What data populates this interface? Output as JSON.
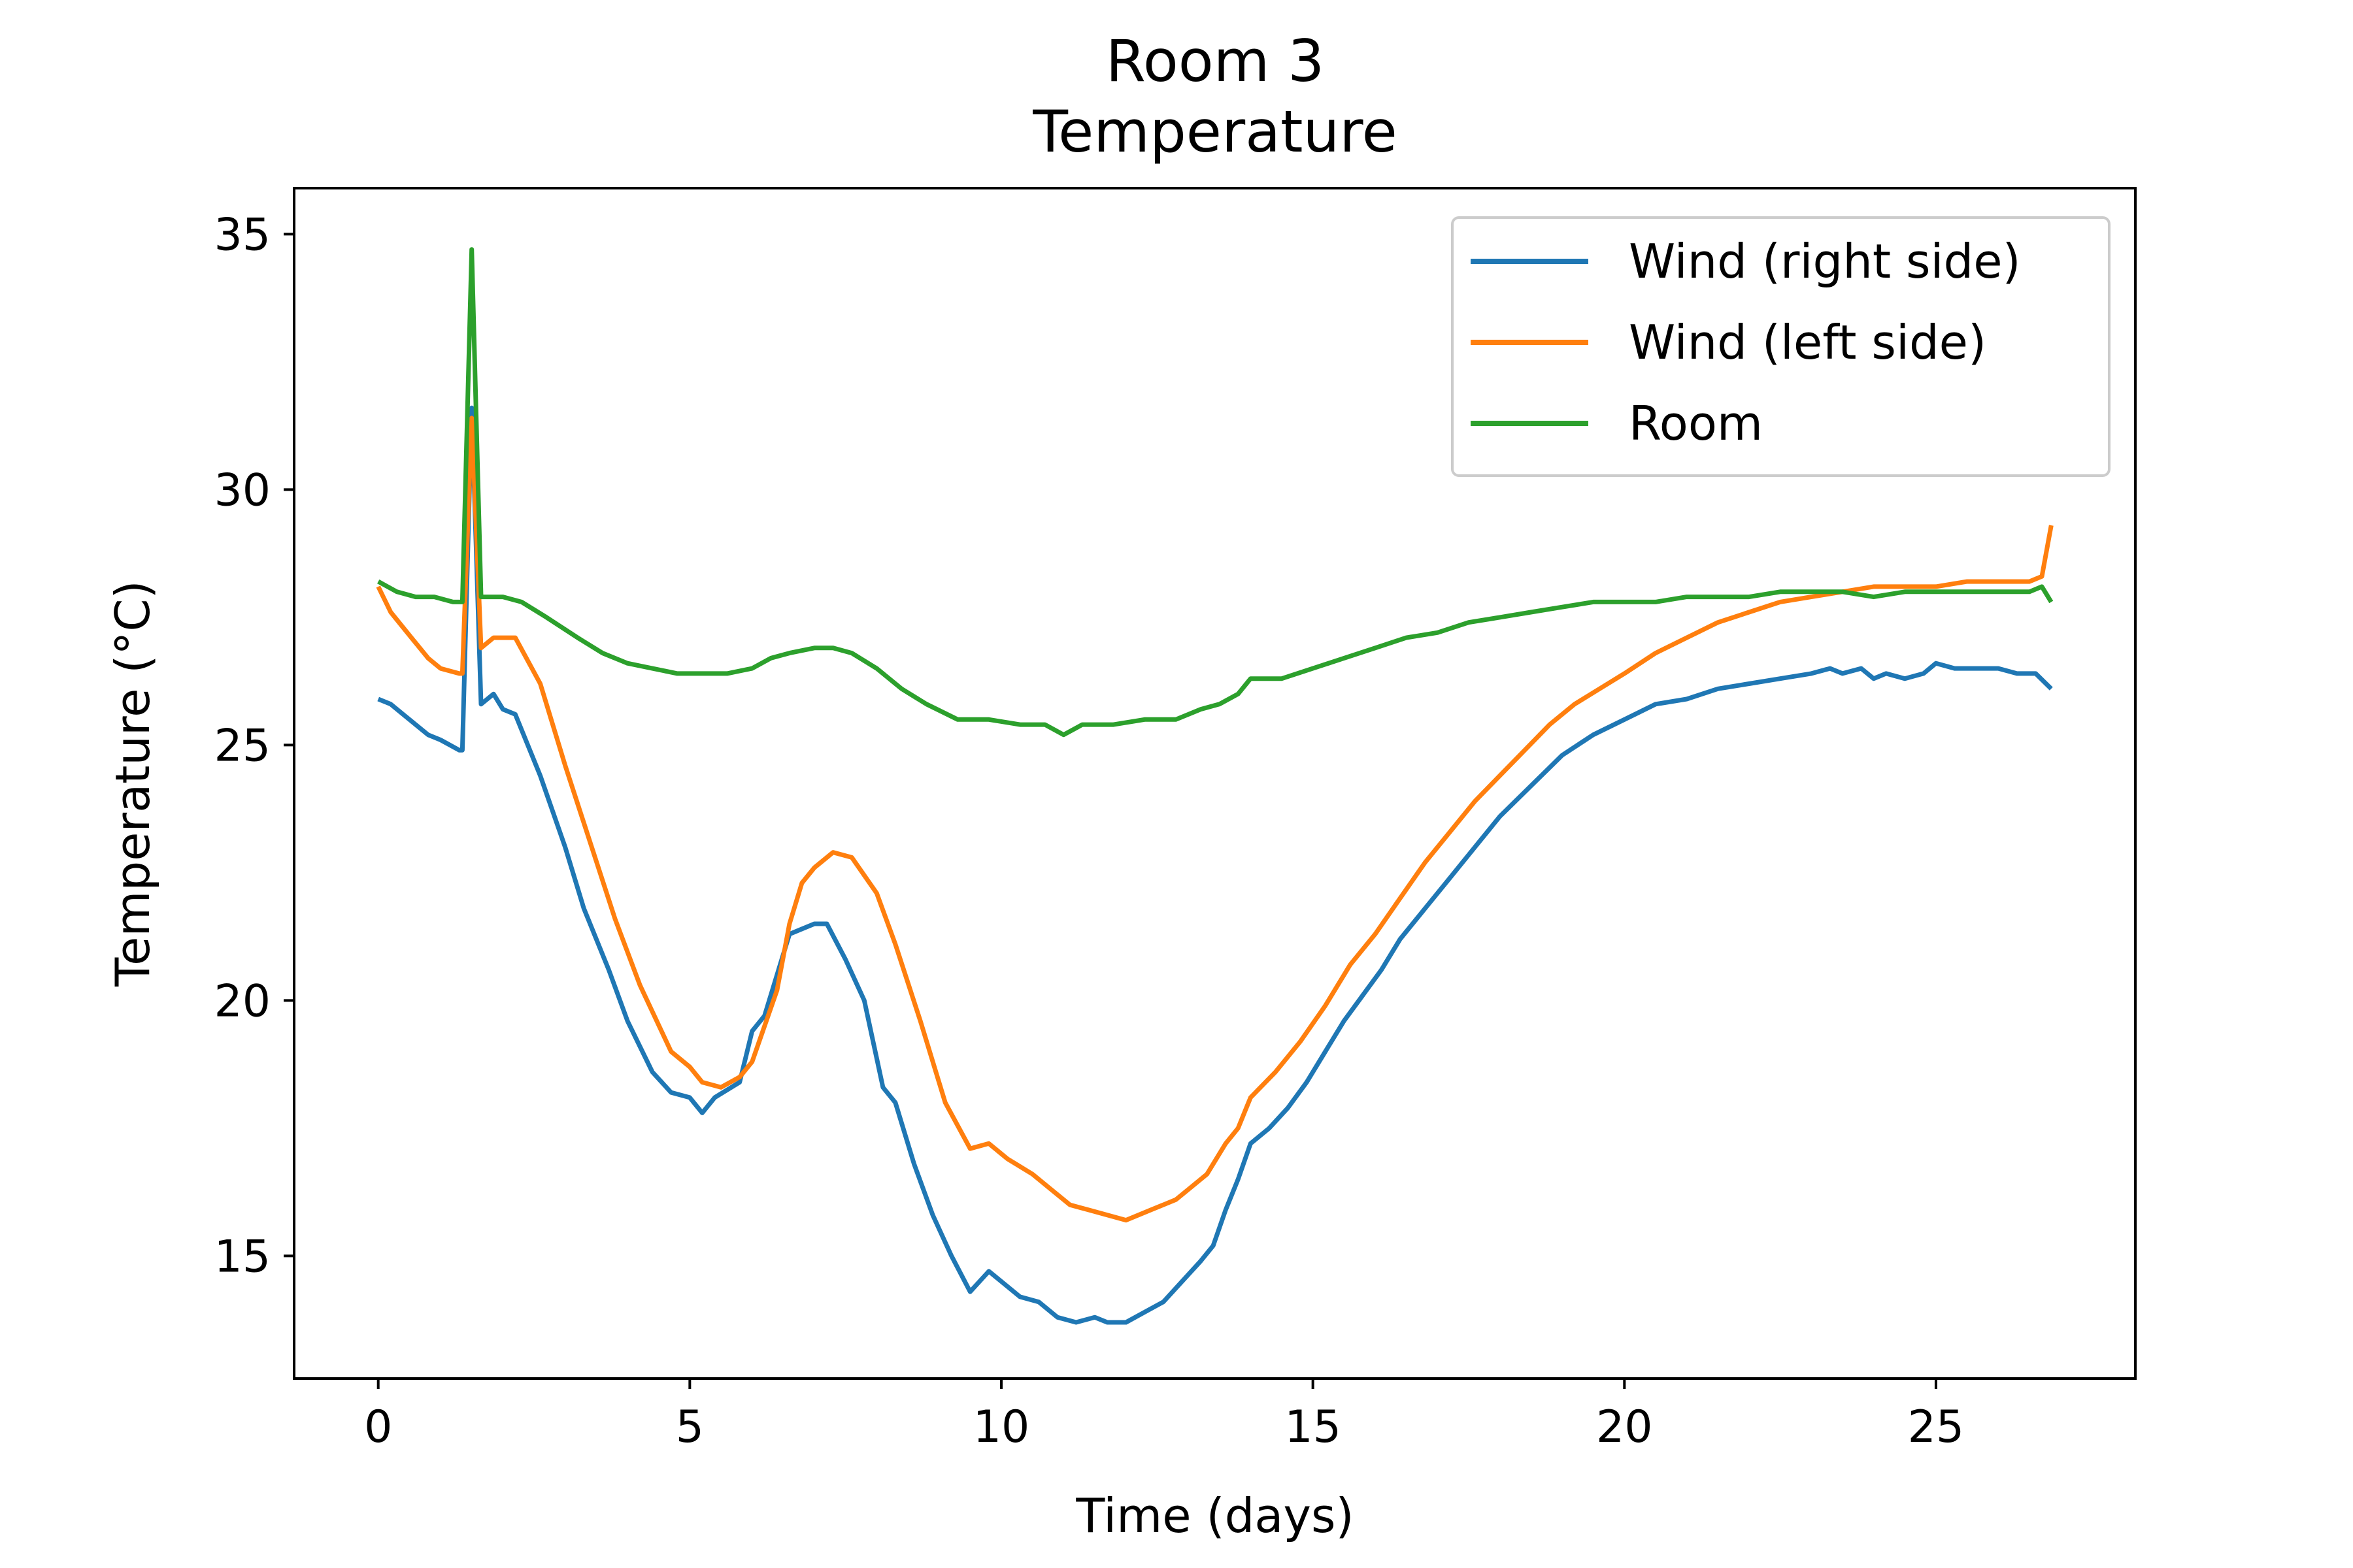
{
  "chart_data": {
    "type": "line",
    "title_line1": "Room 3",
    "title_line2": "Temperature",
    "xlabel": "Time (days)",
    "ylabel": "Temperature (°C)",
    "xlim": [
      -1.35,
      28.2
    ],
    "ylim": [
      12.6,
      35.9
    ],
    "xticks": [
      0,
      5,
      10,
      15,
      20,
      25
    ],
    "yticks": [
      15,
      20,
      25,
      30,
      35
    ],
    "legend_position": "top-right",
    "grid": false,
    "series": [
      {
        "name": "Wind (right side)",
        "color": "#1f77b4",
        "points": [
          [
            0,
            25.9
          ],
          [
            0.2,
            25.8
          ],
          [
            0.4,
            25.6
          ],
          [
            0.6,
            25.4
          ],
          [
            0.8,
            25.2
          ],
          [
            1.0,
            25.1
          ],
          [
            1.3,
            24.9
          ],
          [
            1.35,
            24.9
          ],
          [
            1.5,
            31.6
          ],
          [
            1.65,
            25.8
          ],
          [
            1.85,
            26.0
          ],
          [
            2.0,
            25.7
          ],
          [
            2.2,
            25.6
          ],
          [
            2.6,
            24.4
          ],
          [
            3.0,
            23.0
          ],
          [
            3.3,
            21.8
          ],
          [
            3.7,
            20.6
          ],
          [
            4.0,
            19.6
          ],
          [
            4.4,
            18.6
          ],
          [
            4.7,
            18.2
          ],
          [
            5.0,
            18.1
          ],
          [
            5.2,
            17.8
          ],
          [
            5.4,
            18.1
          ],
          [
            5.8,
            18.4
          ],
          [
            6.0,
            19.4
          ],
          [
            6.2,
            19.7
          ],
          [
            6.4,
            20.5
          ],
          [
            6.6,
            21.3
          ],
          [
            6.8,
            21.4
          ],
          [
            7.0,
            21.5
          ],
          [
            7.2,
            21.5
          ],
          [
            7.5,
            20.8
          ],
          [
            7.8,
            20.0
          ],
          [
            8.1,
            18.3
          ],
          [
            8.3,
            18.0
          ],
          [
            8.6,
            16.8
          ],
          [
            8.9,
            15.8
          ],
          [
            9.2,
            15.0
          ],
          [
            9.5,
            14.3
          ],
          [
            9.8,
            14.7
          ],
          [
            10.0,
            14.5
          ],
          [
            10.3,
            14.2
          ],
          [
            10.6,
            14.1
          ],
          [
            10.9,
            13.8
          ],
          [
            11.2,
            13.7
          ],
          [
            11.5,
            13.8
          ],
          [
            11.7,
            13.7
          ],
          [
            12.0,
            13.7
          ],
          [
            12.3,
            13.9
          ],
          [
            12.6,
            14.1
          ],
          [
            12.9,
            14.5
          ],
          [
            13.2,
            14.9
          ],
          [
            13.4,
            15.2
          ],
          [
            13.6,
            15.9
          ],
          [
            13.8,
            16.5
          ],
          [
            14.0,
            17.2
          ],
          [
            14.3,
            17.5
          ],
          [
            14.6,
            17.9
          ],
          [
            14.9,
            18.4
          ],
          [
            15.2,
            19.0
          ],
          [
            15.5,
            19.6
          ],
          [
            15.8,
            20.1
          ],
          [
            16.1,
            20.6
          ],
          [
            16.4,
            21.2
          ],
          [
            16.8,
            21.8
          ],
          [
            17.2,
            22.4
          ],
          [
            17.6,
            23.0
          ],
          [
            18.0,
            23.6
          ],
          [
            18.5,
            24.2
          ],
          [
            19.0,
            24.8
          ],
          [
            19.5,
            25.2
          ],
          [
            20.0,
            25.5
          ],
          [
            20.5,
            25.8
          ],
          [
            21.0,
            25.9
          ],
          [
            21.5,
            26.1
          ],
          [
            22.0,
            26.2
          ],
          [
            22.5,
            26.3
          ],
          [
            23.0,
            26.4
          ],
          [
            23.3,
            26.5
          ],
          [
            23.5,
            26.4
          ],
          [
            23.8,
            26.5
          ],
          [
            24.0,
            26.3
          ],
          [
            24.2,
            26.4
          ],
          [
            24.5,
            26.3
          ],
          [
            24.8,
            26.4
          ],
          [
            25.0,
            26.6
          ],
          [
            25.3,
            26.5
          ],
          [
            25.6,
            26.5
          ],
          [
            26.0,
            26.5
          ],
          [
            26.3,
            26.4
          ],
          [
            26.6,
            26.4
          ],
          [
            26.85,
            26.1
          ]
        ]
      },
      {
        "name": "Wind (left side)",
        "color": "#ff7f0e",
        "points": [
          [
            0,
            28.1
          ],
          [
            0.2,
            27.6
          ],
          [
            0.4,
            27.3
          ],
          [
            0.6,
            27.0
          ],
          [
            0.8,
            26.7
          ],
          [
            1.0,
            26.5
          ],
          [
            1.3,
            26.4
          ],
          [
            1.35,
            26.4
          ],
          [
            1.5,
            31.4
          ],
          [
            1.65,
            26.9
          ],
          [
            1.85,
            27.1
          ],
          [
            2.0,
            27.1
          ],
          [
            2.2,
            27.1
          ],
          [
            2.6,
            26.2
          ],
          [
            3.0,
            24.6
          ],
          [
            3.4,
            23.1
          ],
          [
            3.8,
            21.6
          ],
          [
            4.2,
            20.3
          ],
          [
            4.7,
            19.0
          ],
          [
            5.0,
            18.7
          ],
          [
            5.2,
            18.4
          ],
          [
            5.5,
            18.3
          ],
          [
            5.8,
            18.5
          ],
          [
            6.0,
            18.8
          ],
          [
            6.4,
            20.2
          ],
          [
            6.6,
            21.5
          ],
          [
            6.8,
            22.3
          ],
          [
            7.0,
            22.6
          ],
          [
            7.3,
            22.9
          ],
          [
            7.6,
            22.8
          ],
          [
            8.0,
            22.1
          ],
          [
            8.3,
            21.1
          ],
          [
            8.7,
            19.6
          ],
          [
            9.1,
            18.0
          ],
          [
            9.5,
            17.1
          ],
          [
            9.8,
            17.2
          ],
          [
            10.1,
            16.9
          ],
          [
            10.5,
            16.6
          ],
          [
            10.8,
            16.3
          ],
          [
            11.1,
            16.0
          ],
          [
            11.4,
            15.9
          ],
          [
            11.7,
            15.8
          ],
          [
            12.0,
            15.7
          ],
          [
            12.4,
            15.9
          ],
          [
            12.8,
            16.1
          ],
          [
            13.0,
            16.3
          ],
          [
            13.3,
            16.6
          ],
          [
            13.6,
            17.2
          ],
          [
            13.8,
            17.5
          ],
          [
            14.0,
            18.1
          ],
          [
            14.4,
            18.6
          ],
          [
            14.8,
            19.2
          ],
          [
            15.2,
            19.9
          ],
          [
            15.6,
            20.7
          ],
          [
            16.0,
            21.3
          ],
          [
            16.4,
            22.0
          ],
          [
            16.8,
            22.7
          ],
          [
            17.2,
            23.3
          ],
          [
            17.6,
            23.9
          ],
          [
            18.0,
            24.4
          ],
          [
            18.4,
            24.9
          ],
          [
            18.8,
            25.4
          ],
          [
            19.2,
            25.8
          ],
          [
            19.6,
            26.1
          ],
          [
            20.0,
            26.4
          ],
          [
            20.5,
            26.8
          ],
          [
            21.0,
            27.1
          ],
          [
            21.5,
            27.4
          ],
          [
            22.0,
            27.6
          ],
          [
            22.5,
            27.8
          ],
          [
            23.0,
            27.9
          ],
          [
            23.5,
            28.0
          ],
          [
            24.0,
            28.1
          ],
          [
            24.5,
            28.1
          ],
          [
            25.0,
            28.1
          ],
          [
            25.5,
            28.2
          ],
          [
            26.0,
            28.2
          ],
          [
            26.5,
            28.2
          ],
          [
            26.7,
            28.3
          ],
          [
            26.85,
            29.3
          ]
        ]
      },
      {
        "name": "Room",
        "color": "#2ca02c",
        "points": [
          [
            0,
            28.2
          ],
          [
            0.3,
            28.0
          ],
          [
            0.6,
            27.9
          ],
          [
            0.9,
            27.9
          ],
          [
            1.2,
            27.8
          ],
          [
            1.35,
            27.8
          ],
          [
            1.5,
            34.7
          ],
          [
            1.65,
            27.9
          ],
          [
            2.0,
            27.9
          ],
          [
            2.3,
            27.8
          ],
          [
            2.7,
            27.5
          ],
          [
            3.2,
            27.1
          ],
          [
            3.6,
            26.8
          ],
          [
            4.0,
            26.6
          ],
          [
            4.4,
            26.5
          ],
          [
            4.8,
            26.4
          ],
          [
            5.2,
            26.4
          ],
          [
            5.6,
            26.4
          ],
          [
            6.0,
            26.5
          ],
          [
            6.3,
            26.7
          ],
          [
            6.6,
            26.8
          ],
          [
            7.0,
            26.9
          ],
          [
            7.3,
            26.9
          ],
          [
            7.6,
            26.8
          ],
          [
            8.0,
            26.5
          ],
          [
            8.4,
            26.1
          ],
          [
            8.8,
            25.8
          ],
          [
            9.3,
            25.5
          ],
          [
            9.8,
            25.5
          ],
          [
            10.3,
            25.4
          ],
          [
            10.7,
            25.4
          ],
          [
            11.0,
            25.2
          ],
          [
            11.3,
            25.4
          ],
          [
            11.8,
            25.4
          ],
          [
            12.3,
            25.5
          ],
          [
            12.8,
            25.5
          ],
          [
            13.2,
            25.7
          ],
          [
            13.5,
            25.8
          ],
          [
            13.8,
            26.0
          ],
          [
            14.0,
            26.3
          ],
          [
            14.5,
            26.3
          ],
          [
            15.0,
            26.5
          ],
          [
            15.5,
            26.7
          ],
          [
            16.0,
            26.9
          ],
          [
            16.5,
            27.1
          ],
          [
            17.0,
            27.2
          ],
          [
            17.5,
            27.4
          ],
          [
            18.0,
            27.5
          ],
          [
            18.5,
            27.6
          ],
          [
            19.0,
            27.7
          ],
          [
            19.5,
            27.8
          ],
          [
            20.0,
            27.8
          ],
          [
            20.5,
            27.8
          ],
          [
            21.0,
            27.9
          ],
          [
            21.5,
            27.9
          ],
          [
            22.0,
            27.9
          ],
          [
            22.5,
            28.0
          ],
          [
            23.0,
            28.0
          ],
          [
            23.5,
            28.0
          ],
          [
            24.0,
            27.9
          ],
          [
            24.5,
            28.0
          ],
          [
            25.0,
            28.0
          ],
          [
            25.5,
            28.0
          ],
          [
            26.0,
            28.0
          ],
          [
            26.5,
            28.0
          ],
          [
            26.7,
            28.1
          ],
          [
            26.85,
            27.8
          ]
        ]
      }
    ]
  }
}
